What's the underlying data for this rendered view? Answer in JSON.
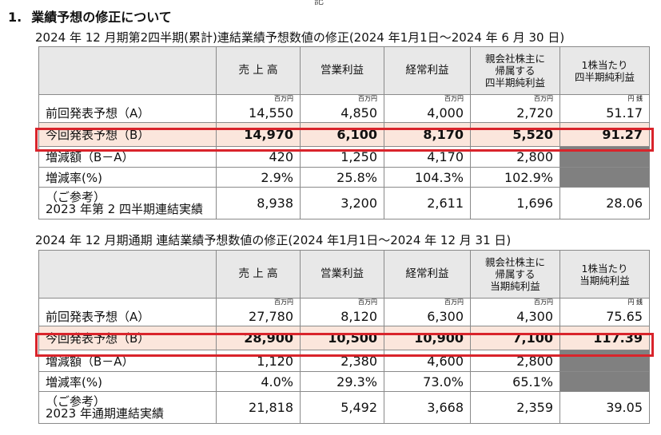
{
  "page": {
    "top_mark": "記"
  },
  "section": {
    "number": "1.",
    "title": "業績予想の修正について"
  },
  "tables": [
    {
      "subtitle": "2024 年 12 月期第2四半期(累計)連結業績予想数値の修正(2024 年1月1日～2024 年 6 月 30 日)",
      "headers": [
        "売 上 高",
        "営業利益",
        "経常利益",
        "親会社株主に\n帰属する\n四半期純利益",
        "1株当たり\n四半期純利益"
      ],
      "units": [
        "百万円",
        "百万円",
        "百万円",
        "百万円",
        "円 銭"
      ],
      "rows": [
        {
          "label": "前回発表予想（A）",
          "values": [
            "14,550",
            "4,850",
            "4,000",
            "2,720",
            "51.17"
          ]
        },
        {
          "label": "今回発表予想（B）",
          "values": [
            "14,970",
            "6,100",
            "8,170",
            "5,520",
            "91.27"
          ]
        },
        {
          "label": "増減額（B－A）",
          "values": [
            "420",
            "1,250",
            "4,170",
            "2,800",
            ""
          ]
        },
        {
          "label": "増減率(%)",
          "values": [
            "2.9%",
            "25.8%",
            "104.3%",
            "102.9%",
            ""
          ]
        },
        {
          "label": "（ご参考）\n2023 年第 2 四半期連結実績",
          "values": [
            "8,938",
            "3,200",
            "2,611",
            "1,696",
            "28.06"
          ]
        }
      ]
    },
    {
      "subtitle": "2024 年 12 月期通期 連結業績予想数値の修正(2024 年1月1日～2024 年 12 月 31 日)",
      "headers": [
        "売 上 高",
        "営業利益",
        "経常利益",
        "親会社株主に\n帰属する\n当期純利益",
        "1株当たり\n当期純利益"
      ],
      "units": [
        "百万円",
        "百万円",
        "百万円",
        "百万円",
        "円 銭"
      ],
      "rows": [
        {
          "label": "前回発表予想（A）",
          "values": [
            "27,780",
            "8,120",
            "6,300",
            "4,300",
            "75.65"
          ]
        },
        {
          "label": "今回発表予想（B）",
          "values": [
            "28,900",
            "10,500",
            "10,900",
            "7,100",
            "117.39"
          ]
        },
        {
          "label": "増減額（B－A）",
          "values": [
            "1,120",
            "2,380",
            "4,600",
            "2,800",
            ""
          ]
        },
        {
          "label": "増減率(%)",
          "values": [
            "4.0%",
            "29.3%",
            "73.0%",
            "65.1%",
            ""
          ]
        },
        {
          "label": "（ご参考）\n2023 年通期連結実績",
          "values": [
            "21,818",
            "5,492",
            "3,668",
            "2,359",
            "39.05"
          ]
        }
      ]
    }
  ]
}
